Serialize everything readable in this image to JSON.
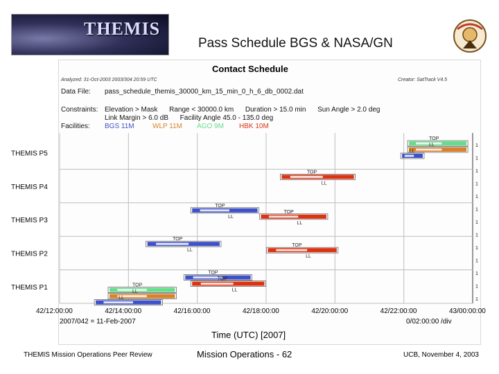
{
  "slide": {
    "logo_text": "THEMIS",
    "title": "Pass Schedule BGS & NASA/GN",
    "footer_left": "THEMIS Mission Operations Peer Review",
    "footer_center": "Mission Operations - 62",
    "footer_right": "UCB, November 4, 2003"
  },
  "report": {
    "analyzed": "Analyzed: 31-Oct-2003 2003/304 20:59 UTC",
    "creator": "Creator: SatTrack V4.5",
    "data_file_label": "Data File:",
    "data_file": "pass_schedule_themis_30000_km_15_min_0_h_6_db_0002.dat",
    "constraints_label": "Constraints:",
    "constraint_line1": "Elevation > Mask      Range < 30000.0 km      Duration > 15.0 min      Sun Angle > 2.0 deg",
    "constraint_line2": "Link Margin > 6.0 dB      Facility Angle 45.0 - 135.0 deg",
    "facilities_label": "Facilities:"
  },
  "colors": {
    "BGS": "#3f51c8",
    "WLP": "#d9822b",
    "AGO": "#66dd8a",
    "HBK": "#dd3311",
    "grid": "#bdbdbd"
  },
  "chart_data": {
    "type": "gantt",
    "title": "Contact Schedule",
    "xlabel": "Time (UTC) [2007]",
    "x_ticks": [
      "42/12:00:00",
      "42/14:00:00",
      "42/16:00:00",
      "42/18:00:00",
      "42/20:00:00",
      "42/22:00:00",
      "43/00:00:00"
    ],
    "x_range_hours": [
      12,
      24
    ],
    "date_note": "2007/042 = 11-Feb-2007",
    "scale_note": "0/02:00:00 /div",
    "facilities": [
      {
        "code": "BGS",
        "label": "BGS 11M"
      },
      {
        "code": "WLP",
        "label": "WLP 11M"
      },
      {
        "code": "AGO",
        "label": "AGO 9M"
      },
      {
        "code": "HBK",
        "label": "HBK 10M"
      }
    ],
    "rows": [
      "THEMIS P5",
      "THEMIS P4",
      "THEMIS P3",
      "THEMIS P2",
      "THEMIS P1"
    ],
    "passes": [
      {
        "probe": "THEMIS P5",
        "facility": "AGO",
        "start": 22.15,
        "end": 23.82,
        "lane": 0,
        "labels": [
          "TOP"
        ]
      },
      {
        "probe": "THEMIS P5",
        "facility": "WLP",
        "start": 22.15,
        "end": 23.82,
        "lane": 1,
        "labels": [
          "LL"
        ]
      },
      {
        "probe": "THEMIS P5",
        "facility": "BGS",
        "start": 21.95,
        "end": 22.55,
        "lane": 2,
        "labels": [
          "LL"
        ]
      },
      {
        "probe": "THEMIS P4",
        "facility": "HBK",
        "start": 18.45,
        "end": 20.55,
        "lane": 0,
        "labels": [
          "TOP",
          "LL"
        ]
      },
      {
        "probe": "THEMIS P3",
        "facility": "BGS",
        "start": 15.85,
        "end": 17.75,
        "lane": 0,
        "labels": [
          "TOP",
          "LL"
        ]
      },
      {
        "probe": "THEMIS P3",
        "facility": "HBK",
        "start": 17.85,
        "end": 19.75,
        "lane": 1,
        "labels": [
          "TOP",
          "LL"
        ]
      },
      {
        "probe": "THEMIS P2",
        "facility": "BGS",
        "start": 14.55,
        "end": 16.65,
        "lane": 0,
        "labels": [
          "TOP",
          "LL"
        ]
      },
      {
        "probe": "THEMIS P2",
        "facility": "HBK",
        "start": 18.05,
        "end": 20.05,
        "lane": 1,
        "labels": [
          "TOP",
          "LL"
        ]
      },
      {
        "probe": "THEMIS P1",
        "facility": "BGS",
        "start": 15.65,
        "end": 17.55,
        "lane": 0,
        "labels": [
          "TOP"
        ]
      },
      {
        "probe": "THEMIS P1",
        "facility": "HBK",
        "start": 15.85,
        "end": 17.95,
        "lane": 1,
        "labels": [
          "TOP",
          "LL"
        ]
      },
      {
        "probe": "THEMIS P1",
        "facility": "AGO",
        "start": 13.45,
        "end": 15.35,
        "lane": 2,
        "labels": [
          "TOP"
        ]
      },
      {
        "probe": "THEMIS P1",
        "facility": "WLP",
        "start": 13.45,
        "end": 15.35,
        "lane": 3,
        "labels": [
          "LL"
        ]
      },
      {
        "probe": "THEMIS P1",
        "facility": "BGS",
        "start": 13.05,
        "end": 14.95,
        "lane": 4,
        "labels": [
          "LL"
        ]
      }
    ],
    "right_marks": [
      "1",
      "1",
      "1",
      "1",
      "1",
      "1",
      "1",
      "1",
      "1",
      "1",
      "1",
      "1",
      "1"
    ]
  }
}
